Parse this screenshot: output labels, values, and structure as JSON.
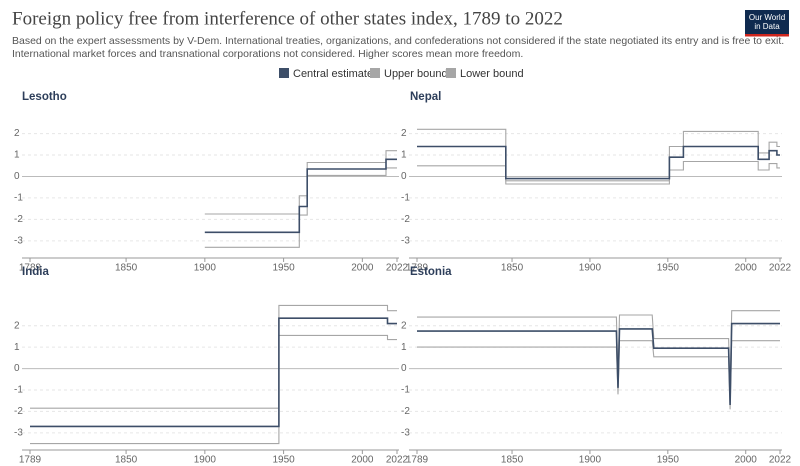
{
  "header": {
    "title": "Foreign policy free from interference of other states index, 1789 to 2022",
    "subtitle": [
      "Based on the expert assessments by V-Dem. International treaties, organizations, and confederations not considered if the state negotiated its entry and is free to exit.",
      "International market forces and transnational corporations not considered. Higher scores mean more freedom."
    ],
    "logo": [
      "Our World",
      "in Data"
    ]
  },
  "chart_data": [
    {
      "type": "line",
      "title": "Lesotho",
      "grid": true,
      "x": [
        1900,
        1960,
        1960,
        1965,
        1965,
        2015,
        2015,
        2022
      ],
      "series": [
        {
          "name": "Central estimate",
          "color": "#3d4e68",
          "values": [
            -2.6,
            -2.6,
            -1.4,
            -1.4,
            0.35,
            0.35,
            0.8,
            0.8
          ]
        },
        {
          "name": "Upper bound",
          "color": "#a6a6a6",
          "values": [
            -1.75,
            -1.75,
            -0.9,
            -0.9,
            0.65,
            0.65,
            1.2,
            1.2
          ]
        },
        {
          "name": "Lower bound",
          "color": "#a6a6a6",
          "values": [
            -3.3,
            -3.3,
            -1.8,
            -1.8,
            0.05,
            0.05,
            0.4,
            0.4
          ]
        }
      ],
      "xlim": [
        1789,
        2022
      ],
      "xticks": [
        1789,
        1850,
        1900,
        1950,
        2000,
        2022
      ],
      "ylim": [
        -3.8,
        2.4
      ],
      "yticks": [
        2,
        1,
        0,
        -1,
        -2,
        -3
      ]
    },
    {
      "type": "line",
      "title": "Nepal",
      "grid": true,
      "x": [
        1789,
        1846,
        1846,
        1951,
        1951,
        1960,
        1960,
        2008,
        2008,
        2015,
        2015,
        2020,
        2020,
        2022
      ],
      "series": [
        {
          "name": "Central estimate",
          "color": "#3d4e68",
          "values": [
            1.4,
            1.4,
            -0.1,
            -0.1,
            0.9,
            0.9,
            1.4,
            1.4,
            0.8,
            0.8,
            1.2,
            1.2,
            1.0,
            1.0
          ]
        },
        {
          "name": "Upper bound",
          "color": "#a6a6a6",
          "values": [
            2.2,
            2.2,
            -0.2,
            -0.2,
            1.4,
            1.4,
            2.1,
            2.1,
            1.1,
            1.1,
            1.6,
            1.6,
            1.4,
            1.4
          ]
        },
        {
          "name": "Lower bound",
          "color": "#a6a6a6",
          "values": [
            0.5,
            0.5,
            -0.35,
            -0.35,
            0.3,
            0.3,
            0.7,
            0.7,
            0.3,
            0.3,
            0.6,
            0.6,
            0.4,
            0.4
          ]
        }
      ],
      "xlim": [
        1789,
        2022
      ],
      "xticks": [
        1789,
        1850,
        1900,
        1950,
        2000,
        2022
      ],
      "ylim": [
        -3.8,
        2.4
      ],
      "yticks": [
        2,
        1,
        0,
        -1,
        -2,
        -3
      ]
    },
    {
      "type": "line",
      "title": "India",
      "grid": true,
      "x": [
        1789,
        1947,
        1947,
        2016,
        2016,
        2022
      ],
      "series": [
        {
          "name": "Central estimate",
          "color": "#3d4e68",
          "values": [
            -2.7,
            -2.7,
            2.35,
            2.35,
            2.1,
            2.1
          ]
        },
        {
          "name": "Upper bound",
          "color": "#a6a6a6",
          "values": [
            -1.85,
            -1.85,
            2.95,
            2.95,
            2.7,
            2.7
          ]
        },
        {
          "name": "Lower bound",
          "color": "#a6a6a6",
          "values": [
            -3.5,
            -3.5,
            1.55,
            1.55,
            1.35,
            1.35
          ]
        }
      ],
      "xlim": [
        1789,
        2022
      ],
      "xticks": [
        1789,
        1850,
        1900,
        1950,
        2000,
        2022
      ],
      "ylim": [
        -3.8,
        3.2
      ],
      "yticks": [
        2,
        1,
        0,
        -1,
        -2,
        -3
      ]
    },
    {
      "type": "line",
      "title": "Estonia",
      "grid": true,
      "x": [
        1789,
        1917,
        1918,
        1919,
        1940,
        1941,
        1989,
        1990,
        1991,
        2022
      ],
      "series": [
        {
          "name": "Central estimate",
          "color": "#3d4e68",
          "values": [
            1.75,
            1.75,
            -0.9,
            1.85,
            1.85,
            0.95,
            0.95,
            -1.7,
            2.1,
            2.1
          ]
        },
        {
          "name": "Upper bound",
          "color": "#a6a6a6",
          "values": [
            2.4,
            2.4,
            -0.4,
            2.5,
            2.5,
            1.4,
            1.4,
            -1.3,
            2.7,
            2.7
          ]
        },
        {
          "name": "Lower bound",
          "color": "#a6a6a6",
          "values": [
            1.0,
            1.0,
            -1.2,
            1.3,
            1.3,
            0.55,
            0.55,
            -1.9,
            1.3,
            1.3
          ]
        }
      ],
      "xlim": [
        1789,
        2022
      ],
      "xticks": [
        1789,
        1850,
        1900,
        1950,
        2000,
        2022
      ],
      "ylim": [
        -3.8,
        3.2
      ],
      "yticks": [
        2,
        1,
        0,
        -1,
        -2,
        -3
      ]
    }
  ]
}
